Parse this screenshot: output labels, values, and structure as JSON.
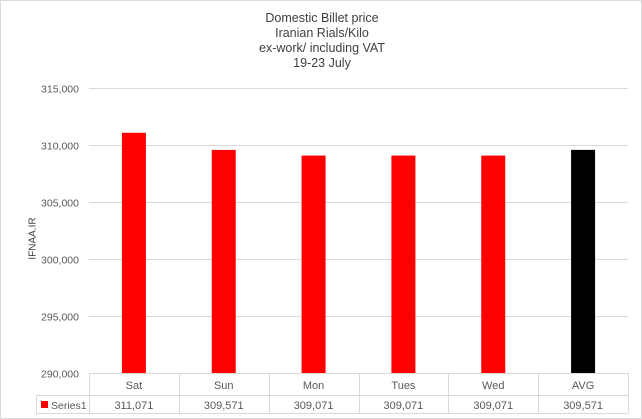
{
  "chart_data": {
    "type": "bar",
    "title": [
      "Domestic Billet price",
      "Iranian Rials/Kilo",
      "ex-work/ including VAT",
      "19-23 July"
    ],
    "ylabel": "IFNAA.IR",
    "xlabel": "",
    "categories": [
      "Sat",
      "Sun",
      "Mon",
      "Tues",
      "Wed",
      "AVG"
    ],
    "series": [
      {
        "name": "Series1",
        "values": [
          311071,
          309571,
          309071,
          309071,
          309071,
          309571
        ],
        "value_labels": [
          "311,071",
          "309,571",
          "309,071",
          "309,071",
          "309,071",
          "309,571"
        ]
      }
    ],
    "bar_colors": [
      "#ff0000",
      "#ff0000",
      "#ff0000",
      "#ff0000",
      "#ff0000",
      "#000000"
    ],
    "ylim": [
      290000,
      315000
    ],
    "yticks": [
      290000,
      295000,
      300000,
      305000,
      310000,
      315000
    ],
    "ytick_labels": [
      "290,000",
      "295,000",
      "300,000",
      "305,000",
      "310,000",
      "315,000"
    ],
    "grid": true,
    "legend": "data-table",
    "series_color": "#ff0000"
  }
}
